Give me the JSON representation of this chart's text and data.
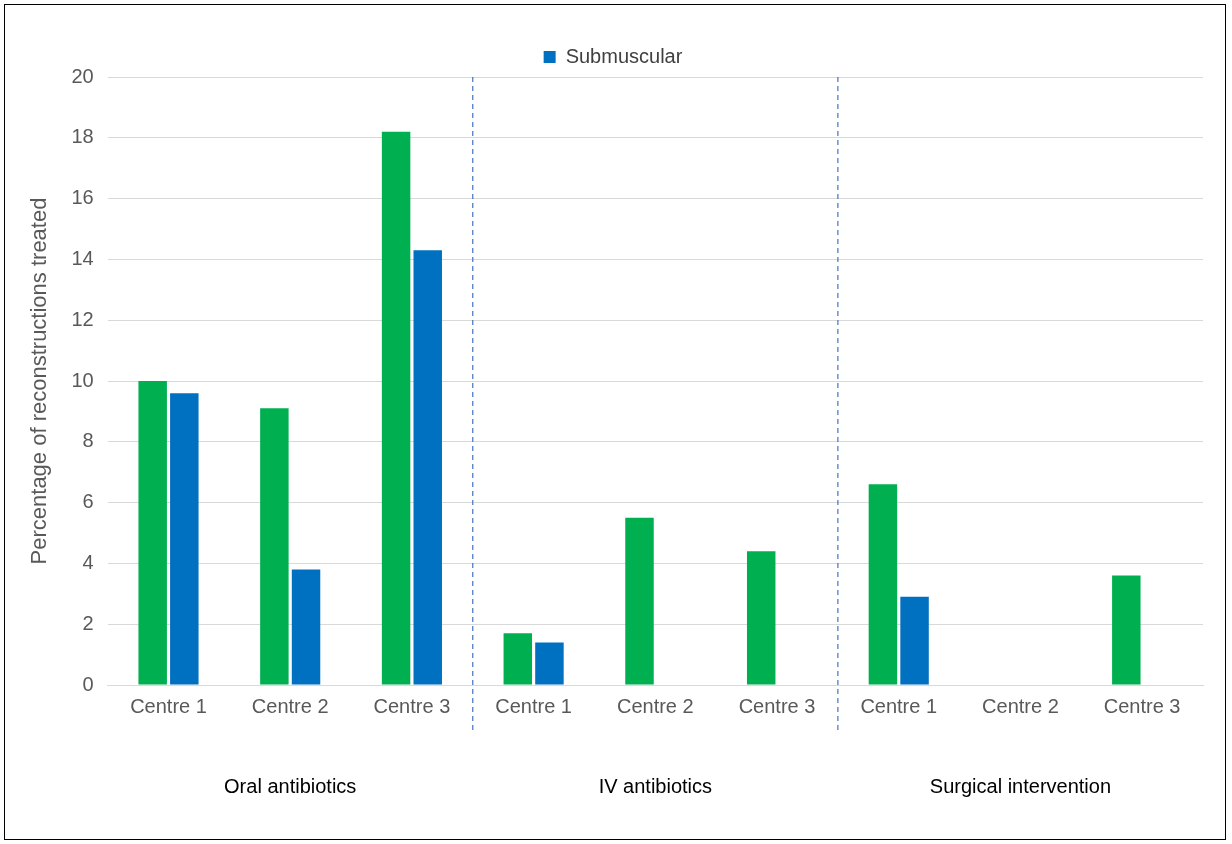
{
  "chart_data": {
    "type": "bar",
    "ylabel": "Percentage of reconstructions treated",
    "categories": [
      "Centre 1",
      "Centre 2",
      "Centre 3",
      "Centre 1",
      "Centre 2",
      "Centre 3",
      "Centre 1",
      "Centre 2",
      "Centre 3"
    ],
    "series": [
      {
        "color": "#00b050",
        "values": [
          10,
          9.1,
          18.2,
          1.7,
          5.5,
          4.4,
          6.6,
          0,
          3.6
        ]
      },
      {
        "name": "Submuscular",
        "color": "#0070c0",
        "values": [
          9.6,
          3.8,
          14.3,
          1.4,
          0,
          0,
          2.9,
          0,
          0
        ]
      }
    ],
    "ylim": [
      0,
      20
    ],
    "yticks": [
      0,
      2,
      4,
      6,
      8,
      10,
      12,
      14,
      16,
      18,
      20
    ],
    "grid": "y",
    "legend": "top",
    "annotations": [
      "Oral antibiotics",
      "IV antibiotics",
      "Surgical intervention"
    ]
  }
}
